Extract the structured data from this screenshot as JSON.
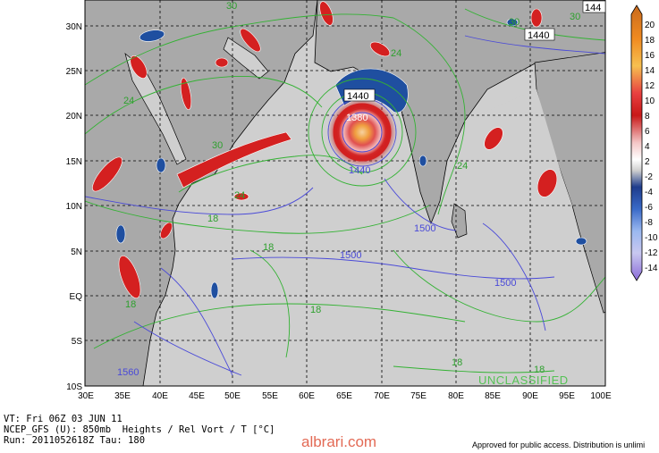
{
  "map": {
    "lat_labels": [
      "30N",
      "25N",
      "20N",
      "15N",
      "10N",
      "5N",
      "EQ",
      "5S",
      "10S"
    ],
    "lon_labels": [
      "30E",
      "35E",
      "40E",
      "45E",
      "50E",
      "55E",
      "60E",
      "65E",
      "70E",
      "75E",
      "80E",
      "85E",
      "90E",
      "95E",
      "100E"
    ],
    "contour_labels": {
      "height_green": [
        "30",
        "24",
        "24",
        "30",
        "24",
        "18",
        "18",
        "18",
        "18",
        "18",
        "24",
        "30",
        "30",
        "18"
      ],
      "height_blue": [
        "1440",
        "1380",
        "1440",
        "1500",
        "1500",
        "1500",
        "1560",
        "1440",
        "144"
      ]
    },
    "colorbar_labels": [
      "20",
      "18",
      "16",
      "14",
      "12",
      "10",
      "8",
      "6",
      "4",
      "2",
      "-2",
      "-4",
      "-6",
      "-8",
      "-10",
      "-12",
      "-14"
    ],
    "colors": {
      "land": "#a8a8a8",
      "ocean": "#d0d0d0",
      "height_contour": "#33b233",
      "temp_contour": "#4a4ad8",
      "vort_pos": "#d32020",
      "vort_neg": "#1f4fa0",
      "grid": "#000000"
    },
    "unclassified": "UNCLASSIFIED"
  },
  "footer": {
    "line1": "VT: Fri 06Z 03 JUN 11",
    "line2": "NCEP_GFS (U): 850mb  Heights / Rel Vort / T [°C]",
    "line3": "Run: 2011052618Z Tau: 180",
    "approved": "Approved for public access. Distribution is unlimi",
    "watermark": "albrari.com"
  }
}
